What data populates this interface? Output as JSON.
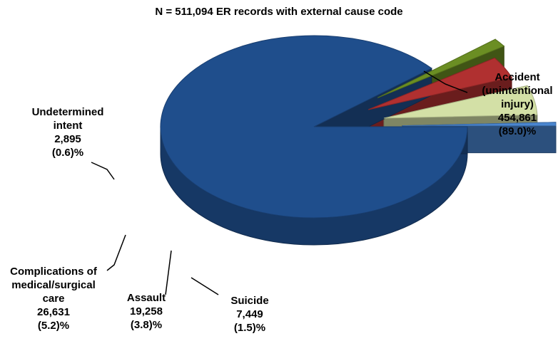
{
  "chart_data": {
    "type": "pie",
    "title": "N = 511,094  ER records with external cause code",
    "slices": [
      {
        "label_lines": [
          "Accident",
          "(unintentional",
          "injury)"
        ],
        "count": "454,861",
        "percent_text": "(89.0)%",
        "value": 89.0,
        "color": "#1f4e8c"
      },
      {
        "label_lines": [
          "Suicide"
        ],
        "count": "7,449",
        "percent_text": "(1.5)%",
        "value": 1.5,
        "color": "#6b8e23"
      },
      {
        "label_lines": [
          "Assault"
        ],
        "count": "19,258",
        "percent_text": "(3.8)%",
        "value": 3.8,
        "color": "#b03030"
      },
      {
        "label_lines": [
          "Complications of",
          "medical/surgical",
          "care"
        ],
        "count": "26,631",
        "percent_text": "(5.2)%",
        "value": 5.2,
        "color": "#d3e0a6"
      },
      {
        "label_lines": [
          "Undetermined",
          "intent"
        ],
        "count": "2,895",
        "percent_text": "(0.6)%",
        "value": 0.6,
        "color": "#4a86d0"
      }
    ]
  }
}
